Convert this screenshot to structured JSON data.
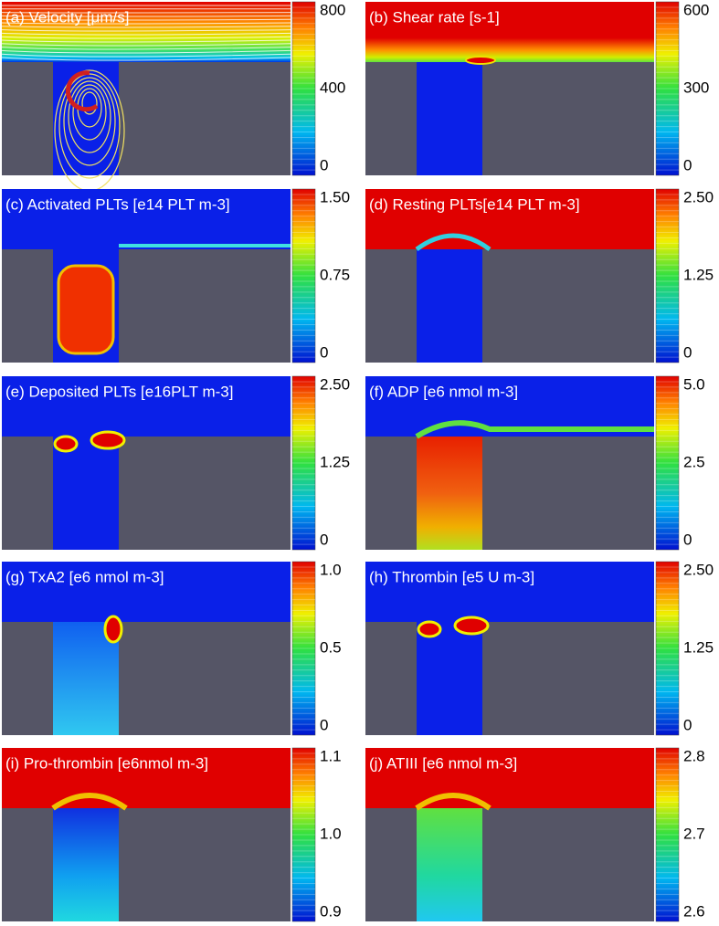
{
  "panels": [
    {
      "title": "(a) Velocity [μm/s]",
      "ticks": [
        "800",
        "400",
        "0"
      ]
    },
    {
      "title": "(b) Shear rate [s-1]",
      "ticks": [
        "600",
        "300",
        "0"
      ]
    },
    {
      "title": "(c) Activated PLTs [e14 PLT m-3]",
      "ticks": [
        "1.50",
        "0.75",
        "0"
      ]
    },
    {
      "title": "(d) Resting PLTs[e14 PLT m-3]",
      "ticks": [
        "2.50",
        "1.25",
        "0"
      ]
    },
    {
      "title": "(e) Deposited PLTs [e16PLT m-3]",
      "ticks": [
        "2.50",
        "1.25",
        "0"
      ]
    },
    {
      "title": "(f) ADP [e6 nmol m-3]",
      "ticks": [
        "5.0",
        "2.5",
        "0"
      ]
    },
    {
      "title": "(g) TxA2 [e6 nmol m-3]",
      "ticks": [
        "1.0",
        "0.5",
        "0"
      ]
    },
    {
      "title": "(h) Thrombin [e5 U m-3]",
      "ticks": [
        "2.50",
        "1.25",
        "0"
      ]
    },
    {
      "title": "(i) Pro-thrombin [e6nmol m-3]",
      "ticks": [
        "1.1",
        "1.0",
        "0.9"
      ]
    },
    {
      "title": "(j) ATIII [e6 nmol m-3]",
      "ticks": [
        "2.8",
        "2.7",
        "2.6"
      ]
    }
  ]
}
